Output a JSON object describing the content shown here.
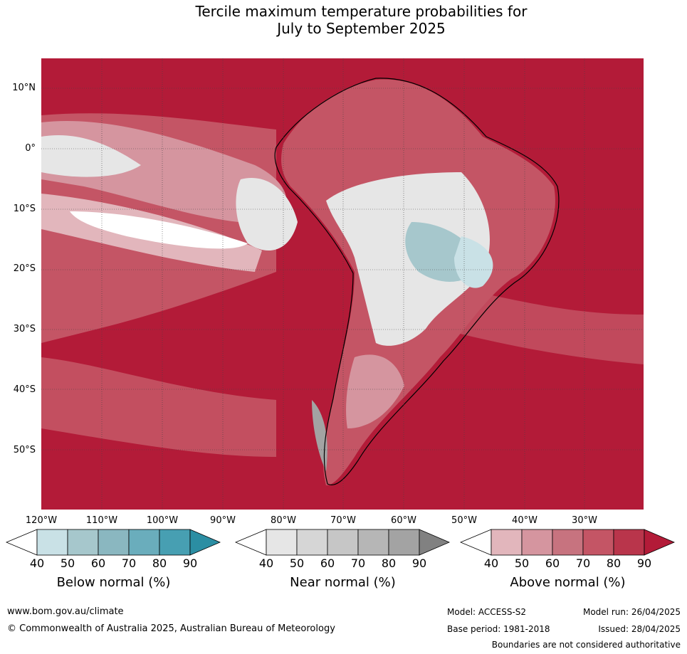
{
  "title": {
    "line1": "Tercile maximum temperature probabilities for",
    "line2": "July to September 2025"
  },
  "map": {
    "lat_labels": [
      "10°N",
      "0°",
      "10°S",
      "20°S",
      "30°S",
      "40°S",
      "50°S"
    ],
    "lon_labels": [
      "120°W",
      "110°W",
      "100°W",
      "90°W",
      "80°W",
      "70°W",
      "60°W",
      "50°W",
      "40°W",
      "30°W"
    ],
    "colors": {
      "above_dark": "#b31b38",
      "ocean_grey": "#888888",
      "coast": "#000000",
      "border": "#808080"
    }
  },
  "legend": {
    "below": {
      "title": "Below normal (%)",
      "ticks": [
        "40",
        "50",
        "60",
        "70",
        "80",
        "90"
      ],
      "colors": [
        "#ffffff",
        "#c9e1e6",
        "#a6c7cc",
        "#8ab7c0",
        "#6aadbc",
        "#479fb2",
        "#2b8ea3"
      ]
    },
    "near": {
      "title": "Near normal (%)",
      "ticks": [
        "40",
        "50",
        "60",
        "70",
        "80",
        "90"
      ],
      "colors": [
        "#ffffff",
        "#e6e6e6",
        "#d6d6d6",
        "#c6c6c6",
        "#b6b6b6",
        "#a3a3a3",
        "#818181"
      ]
    },
    "above": {
      "title": "Above normal (%)",
      "ticks": [
        "40",
        "50",
        "60",
        "70",
        "80",
        "90"
      ],
      "colors": [
        "#ffffff",
        "#e2b6bc",
        "#d5959f",
        "#c7737f",
        "#c45565",
        "#b9354b",
        "#b31b38"
      ]
    }
  },
  "footer": {
    "url": "www.bom.gov.au/climate",
    "copyright": "© Commonwealth of Australia 2025, Australian Bureau of Meteorology",
    "model": "Model: ACCESS-S2",
    "model_run": "Model run: 26/04/2025",
    "base_period": "Base period: 1981-2018",
    "issued": "Issued: 28/04/2025",
    "disclaimer": "Boundaries are not considered authoritative"
  }
}
